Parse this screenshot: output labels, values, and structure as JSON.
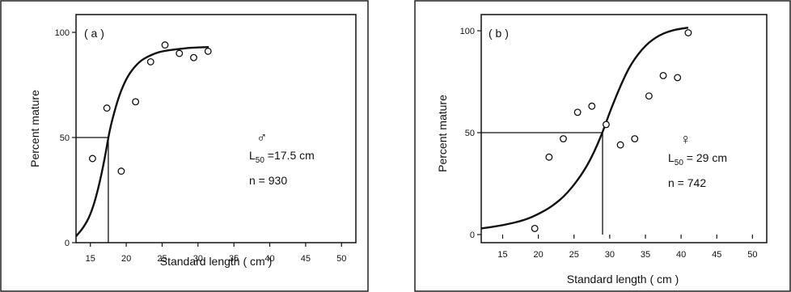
{
  "chart_data": [
    {
      "type": "scatter",
      "panel_label": "( a )",
      "xlabel": "Standard length ( cm )",
      "ylabel": "Percent mature",
      "xlim": [
        13,
        52
      ],
      "ylim": [
        0,
        100
      ],
      "xticks": [
        15,
        20,
        25,
        30,
        35,
        40,
        45,
        50
      ],
      "yticks": [
        0,
        50,
        100
      ],
      "grid": false,
      "sex_symbol": "♂",
      "annotation_l50_label": "L",
      "annotation_l50_sub": "50",
      "annotation_l50_value": " =17.5 cm",
      "annotation_n": "n = 930",
      "l50": 17.5,
      "points": [
        {
          "x": 15.3,
          "y": 40
        },
        {
          "x": 17.3,
          "y": 64
        },
        {
          "x": 19.3,
          "y": 34
        },
        {
          "x": 21.3,
          "y": 67
        },
        {
          "x": 23.4,
          "y": 86
        },
        {
          "x": 25.4,
          "y": 94
        },
        {
          "x": 27.4,
          "y": 90
        },
        {
          "x": 29.4,
          "y": 88
        },
        {
          "x": 31.4,
          "y": 91
        }
      ],
      "curve": [
        {
          "x": 13.0,
          "y": 3
        },
        {
          "x": 14.0,
          "y": 7
        },
        {
          "x": 15.0,
          "y": 13
        },
        {
          "x": 16.0,
          "y": 24
        },
        {
          "x": 17.0,
          "y": 40
        },
        {
          "x": 17.5,
          "y": 50
        },
        {
          "x": 18.0,
          "y": 58
        },
        {
          "x": 19.0,
          "y": 70
        },
        {
          "x": 20.0,
          "y": 78
        },
        {
          "x": 21.0,
          "y": 83
        },
        {
          "x": 22.0,
          "y": 86.5
        },
        {
          "x": 23.0,
          "y": 88.5
        },
        {
          "x": 24.0,
          "y": 90
        },
        {
          "x": 25.0,
          "y": 91
        },
        {
          "x": 27.0,
          "y": 92
        },
        {
          "x": 29.0,
          "y": 92.7
        },
        {
          "x": 31.5,
          "y": 93
        }
      ]
    },
    {
      "type": "scatter",
      "panel_label": "( b )",
      "xlabel": "Standard length ( cm )",
      "ylabel": "Percent mature",
      "xlim": [
        12,
        52
      ],
      "ylim": [
        0,
        100
      ],
      "xticks": [
        15,
        20,
        25,
        30,
        35,
        40,
        45,
        50
      ],
      "yticks": [
        0,
        50,
        100
      ],
      "grid": false,
      "sex_symbol": "♀",
      "annotation_l50_label": "L",
      "annotation_l50_sub": "50",
      "annotation_l50_value": " = 29 cm",
      "annotation_n": "n = 742",
      "l50": 29,
      "points": [
        {
          "x": 19.5,
          "y": 3
        },
        {
          "x": 21.5,
          "y": 38
        },
        {
          "x": 23.5,
          "y": 47
        },
        {
          "x": 25.5,
          "y": 60
        },
        {
          "x": 27.5,
          "y": 63
        },
        {
          "x": 29.5,
          "y": 54
        },
        {
          "x": 31.5,
          "y": 44
        },
        {
          "x": 33.5,
          "y": 47
        },
        {
          "x": 35.5,
          "y": 68
        },
        {
          "x": 37.5,
          "y": 78
        },
        {
          "x": 39.5,
          "y": 77
        },
        {
          "x": 41.0,
          "y": 99
        }
      ],
      "curve": [
        {
          "x": 12.0,
          "y": 3
        },
        {
          "x": 15.0,
          "y": 4.5
        },
        {
          "x": 18.0,
          "y": 7
        },
        {
          "x": 20.0,
          "y": 10
        },
        {
          "x": 22.0,
          "y": 14
        },
        {
          "x": 24.0,
          "y": 20
        },
        {
          "x": 26.0,
          "y": 29
        },
        {
          "x": 27.5,
          "y": 38
        },
        {
          "x": 29.0,
          "y": 50
        },
        {
          "x": 30.0,
          "y": 60
        },
        {
          "x": 31.5,
          "y": 73
        },
        {
          "x": 33.0,
          "y": 84
        },
        {
          "x": 35.0,
          "y": 93
        },
        {
          "x": 37.0,
          "y": 98
        },
        {
          "x": 39.0,
          "y": 100.5
        },
        {
          "x": 41.0,
          "y": 101.5
        }
      ]
    }
  ]
}
